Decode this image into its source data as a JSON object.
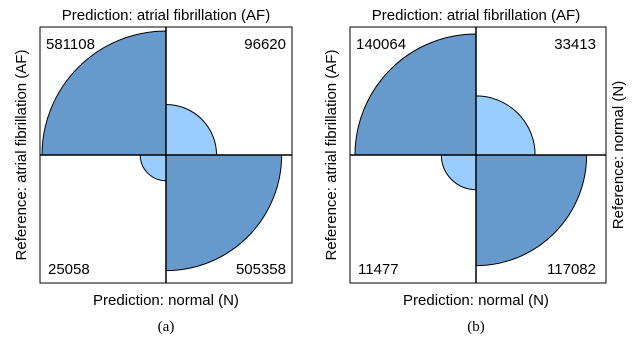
{
  "chart_data": [
    {
      "type": "fourfold",
      "title": "Prediction: atrial fibrillation (AF)",
      "xlabel": "Prediction: normal (N)",
      "ylabel_left": "Reference: atrial fibrillation (AF)",
      "ylabel_right": "",
      "caption": "(a)",
      "cells": {
        "af_af": 581108,
        "n_af": 96620,
        "af_n": 25058,
        "n_n": 505358
      },
      "labels": {
        "af_af": "581108",
        "n_af": "96620",
        "af_n": "25058",
        "n_n": "505358"
      }
    },
    {
      "type": "fourfold",
      "title": "Prediction: atrial fibrillation (AF)",
      "xlabel": "Prediction: normal (N)",
      "ylabel_left": "Reference: atrial fibrillation (AF)",
      "ylabel_right": "Reference: normal (N)",
      "caption": "(b)",
      "cells": {
        "af_af": 140064,
        "n_af": 33413,
        "af_n": 11477,
        "n_n": 117082
      },
      "labels": {
        "af_af": "140064",
        "n_af": "33413",
        "af_n": "11477",
        "n_n": "117082"
      }
    }
  ],
  "colors": {
    "dark": "#6699cc",
    "light": "#99ccff",
    "frame": "#000000"
  }
}
